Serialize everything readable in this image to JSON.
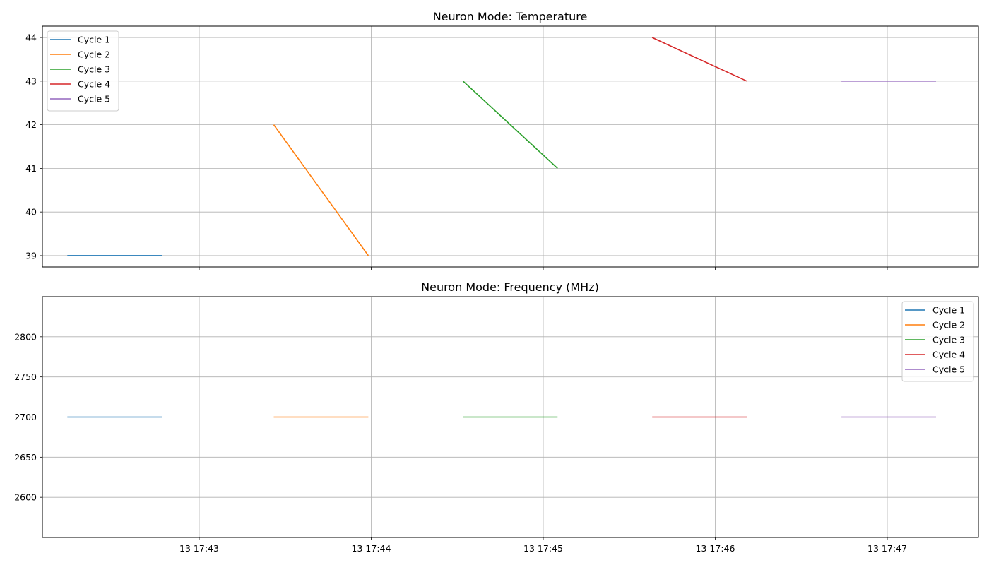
{
  "chart_data": [
    {
      "type": "line",
      "title": "Neuron Mode: Temperature",
      "xlabel": "",
      "ylabel": "",
      "ylim": [
        38.74,
        44.26
      ],
      "yticks": [
        39,
        40,
        41,
        42,
        43,
        44
      ],
      "grid": true,
      "legend": "top-left",
      "series": [
        {
          "name": "Cycle 1",
          "color": "#1f77b4",
          "x": [
            "13 17:42:14",
            "13 17:42:47"
          ],
          "y": [
            39,
            39
          ]
        },
        {
          "name": "Cycle 2",
          "color": "#ff7f0e",
          "x": [
            "13 17:43:26",
            "13 17:43:59"
          ],
          "y": [
            42,
            39
          ]
        },
        {
          "name": "Cycle 3",
          "color": "#2ca02c",
          "x": [
            "13 17:44:32",
            "13 17:45:05"
          ],
          "y": [
            43,
            41
          ]
        },
        {
          "name": "Cycle 4",
          "color": "#d62728",
          "x": [
            "13 17:45:38",
            "13 17:46:11"
          ],
          "y": [
            44,
            43
          ]
        },
        {
          "name": "Cycle 5",
          "color": "#9467bd",
          "x": [
            "13 17:46:44",
            "13 17:47:17"
          ],
          "y": [
            43,
            43
          ]
        }
      ]
    },
    {
      "type": "line",
      "title": "Neuron Mode: Frequency (MHz)",
      "xlabel": "",
      "ylabel": "",
      "ylim": [
        2550,
        2850
      ],
      "yticks": [
        2600,
        2650,
        2700,
        2750,
        2800
      ],
      "xticks": [
        "13 17:43",
        "13 17:44",
        "13 17:45",
        "13 17:46",
        "13 17:47"
      ],
      "grid": true,
      "legend": "top-right",
      "series": [
        {
          "name": "Cycle 1",
          "color": "#1f77b4",
          "x": [
            "13 17:42:14",
            "13 17:42:47"
          ],
          "y": [
            2700,
            2700
          ]
        },
        {
          "name": "Cycle 2",
          "color": "#ff7f0e",
          "x": [
            "13 17:43:26",
            "13 17:43:59"
          ],
          "y": [
            2700,
            2700
          ]
        },
        {
          "name": "Cycle 3",
          "color": "#2ca02c",
          "x": [
            "13 17:44:32",
            "13 17:45:05"
          ],
          "y": [
            2700,
            2700
          ]
        },
        {
          "name": "Cycle 4",
          "color": "#d62728",
          "x": [
            "13 17:45:38",
            "13 17:46:11"
          ],
          "y": [
            2700,
            2700
          ]
        },
        {
          "name": "Cycle 5",
          "color": "#9467bd",
          "x": [
            "13 17:46:44",
            "13 17:47:17"
          ],
          "y": [
            2700,
            2700
          ]
        }
      ]
    }
  ]
}
